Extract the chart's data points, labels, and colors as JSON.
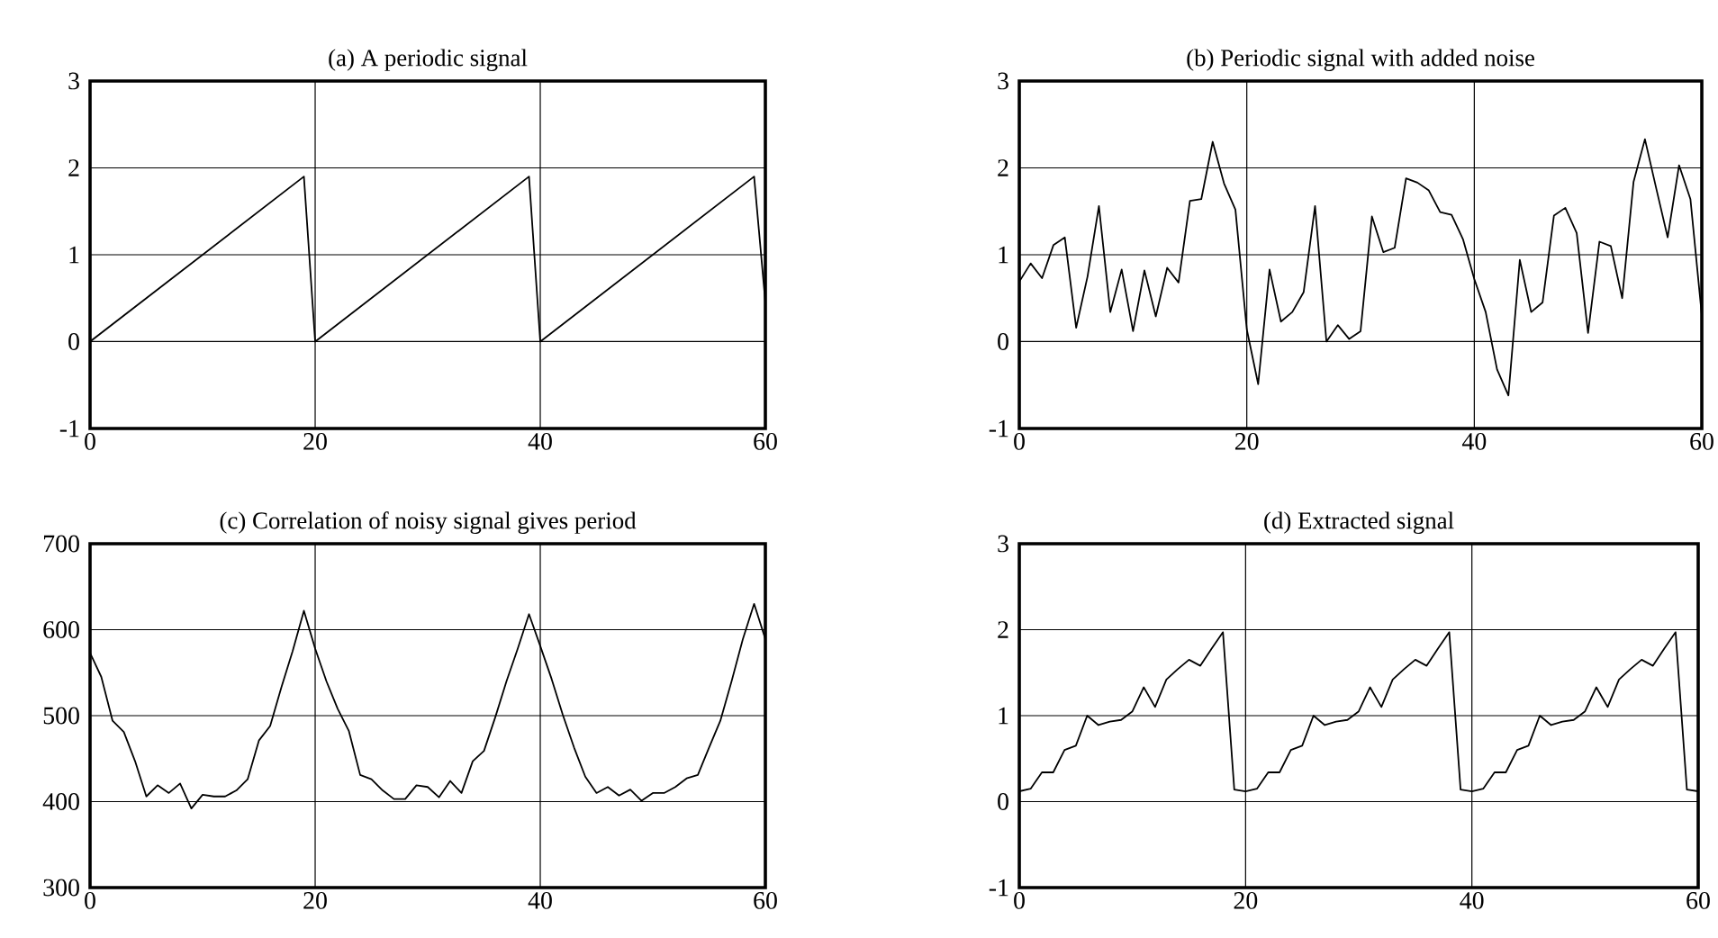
{
  "chart_data": [
    {
      "type": "line",
      "title": "(a) A periodic signal",
      "color": "#000000",
      "grid": true,
      "xlim": [
        0,
        60
      ],
      "ylim": [
        -1,
        3
      ],
      "xticks": [
        0,
        20,
        40,
        60
      ],
      "yticks": [
        -1,
        0,
        1,
        2,
        3
      ],
      "x": [
        0,
        19,
        20,
        39,
        40,
        59,
        60
      ],
      "values": [
        0,
        1.9,
        0,
        1.9,
        0,
        1.9,
        0.45
      ]
    },
    {
      "type": "line",
      "title": "(b) Periodic signal with added noise",
      "color": "#000000",
      "grid": true,
      "xlim": [
        0,
        60
      ],
      "ylim": [
        -1,
        3
      ],
      "xticks": [
        0,
        20,
        40,
        60
      ],
      "yticks": [
        -1,
        0,
        1,
        2,
        3
      ],
      "x": [
        0,
        1,
        2,
        3,
        4,
        5,
        6,
        7,
        8,
        9,
        10,
        11,
        12,
        13,
        14,
        15,
        16,
        17,
        18,
        19,
        20,
        21,
        22,
        23,
        24,
        25,
        26,
        27,
        28,
        29,
        30,
        31,
        32,
        33,
        34,
        35,
        36,
        37,
        38,
        39,
        40,
        41,
        42,
        43,
        44,
        45,
        46,
        47,
        48,
        49,
        50,
        51,
        52,
        53,
        54,
        55,
        56,
        57,
        58,
        59,
        60
      ],
      "values": [
        0.69,
        0.9,
        0.73,
        1.11,
        1.2,
        0.16,
        0.75,
        1.56,
        0.34,
        0.83,
        0.12,
        0.82,
        0.29,
        0.85,
        0.68,
        1.62,
        1.64,
        2.3,
        1.82,
        1.52,
        0.14,
        -0.49,
        0.83,
        0.23,
        0.34,
        0.57,
        1.56,
        0.0,
        0.19,
        0.03,
        0.12,
        1.44,
        1.03,
        1.08,
        1.88,
        1.83,
        1.74,
        1.49,
        1.46,
        1.18,
        0.72,
        0.34,
        -0.32,
        -0.62,
        0.94,
        0.34,
        0.45,
        1.45,
        1.54,
        1.25,
        0.1,
        1.15,
        1.1,
        0.5,
        1.84,
        2.33,
        1.76,
        1.2,
        2.03,
        1.64,
        0.3
      ]
    },
    {
      "type": "line",
      "title": "(c) Correlation of noisy signal gives period",
      "color": "#000000",
      "grid": true,
      "xlim": [
        0,
        60
      ],
      "ylim": [
        300,
        700
      ],
      "xticks": [
        0,
        20,
        40,
        60
      ],
      "yticks": [
        300,
        400,
        500,
        600,
        700
      ],
      "x": [
        0,
        1,
        2,
        3,
        4,
        5,
        6,
        7,
        8,
        9,
        10,
        11,
        12,
        13,
        14,
        15,
        16,
        17,
        18,
        19,
        20,
        21,
        22,
        23,
        24,
        25,
        26,
        27,
        28,
        29,
        30,
        31,
        32,
        33,
        34,
        35,
        36,
        37,
        38,
        39,
        40,
        41,
        42,
        43,
        44,
        45,
        46,
        47,
        48,
        49,
        50,
        51,
        52,
        53,
        54,
        55,
        56,
        57,
        58,
        59,
        60
      ],
      "values": [
        573,
        545,
        494,
        481,
        447,
        406,
        419,
        410,
        421,
        392,
        408,
        406,
        406,
        413,
        426,
        471,
        488,
        533,
        575,
        622,
        578,
        540,
        508,
        482,
        431,
        426,
        413,
        403,
        403,
        419,
        417,
        405,
        424,
        410,
        447,
        459,
        498,
        540,
        578,
        618,
        581,
        543,
        501,
        463,
        429,
        410,
        417,
        407,
        414,
        401,
        410,
        410,
        417,
        427,
        431,
        463,
        494,
        540,
        589,
        630,
        589
      ]
    },
    {
      "type": "line",
      "title": "(d) Extracted signal",
      "color": "#000000",
      "grid": true,
      "xlim": [
        0,
        60
      ],
      "ylim": [
        -1,
        3
      ],
      "xticks": [
        0,
        20,
        40,
        60
      ],
      "yticks": [
        -1,
        0,
        1,
        2,
        3
      ],
      "x": [
        0,
        1,
        2,
        3,
        4,
        5,
        6,
        7,
        8,
        9,
        10,
        11,
        12,
        13,
        14,
        15,
        16,
        17,
        18,
        19,
        20,
        21,
        22,
        23,
        24,
        25,
        26,
        27,
        28,
        29,
        30,
        31,
        32,
        33,
        34,
        35,
        36,
        37,
        38,
        39,
        40,
        41,
        42,
        43,
        44,
        45,
        46,
        47,
        48,
        49,
        50,
        51,
        52,
        53,
        54,
        55,
        56,
        57,
        58,
        59,
        60
      ],
      "values": [
        0.12,
        0.15,
        0.34,
        0.34,
        0.6,
        0.65,
        1.0,
        0.89,
        0.93,
        0.95,
        1.05,
        1.33,
        1.1,
        1.42,
        1.54,
        1.65,
        1.58,
        1.78,
        1.97,
        0.14,
        0.12,
        0.15,
        0.34,
        0.34,
        0.6,
        0.65,
        1.0,
        0.89,
        0.93,
        0.95,
        1.05,
        1.33,
        1.1,
        1.42,
        1.54,
        1.65,
        1.58,
        1.78,
        1.97,
        0.14,
        0.12,
        0.15,
        0.34,
        0.34,
        0.6,
        0.65,
        1.0,
        0.89,
        0.93,
        0.95,
        1.05,
        1.33,
        1.1,
        1.42,
        1.54,
        1.65,
        1.58,
        1.78,
        1.97,
        0.14,
        0.12
      ]
    }
  ]
}
